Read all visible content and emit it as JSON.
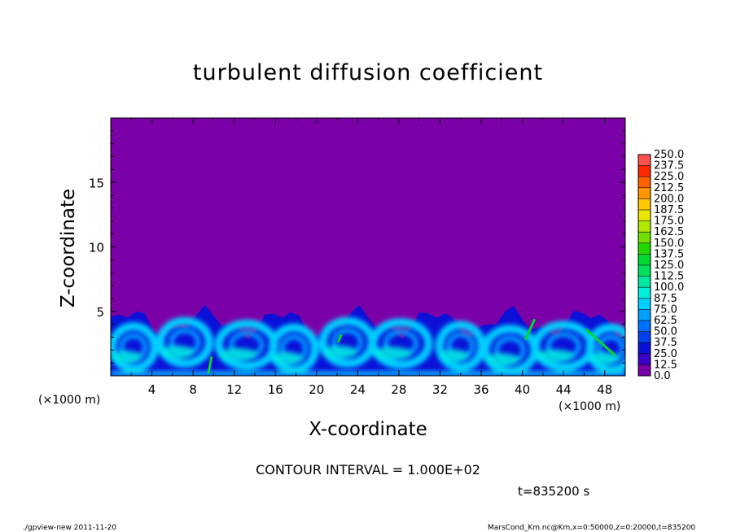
{
  "chart_data": {
    "type": "heatmap",
    "title": "turbulent diffusion coefficient",
    "xlabel": "X-coordinate",
    "ylabel": "Z-coordinate",
    "x_unit_left": "(×1000 m)",
    "x_unit_right": "(×1000 m)",
    "xlim": [
      0,
      50
    ],
    "ylim": [
      0,
      20
    ],
    "x_ticks": [
      4,
      8,
      12,
      16,
      20,
      24,
      28,
      32,
      36,
      40,
      44,
      48
    ],
    "x_tick_labels": [
      "4",
      "8",
      "12",
      "16",
      "20",
      "24",
      "28",
      "32",
      "36",
      "40",
      "44",
      "48"
    ],
    "y_ticks": [
      5,
      10,
      15
    ],
    "y_tick_labels": [
      "5",
      "10",
      "15"
    ],
    "colorbar": {
      "levels": [
        0.0,
        12.5,
        25.0,
        37.5,
        50.0,
        62.5,
        75.0,
        87.5,
        100.0,
        112.5,
        125.0,
        137.5,
        150.0,
        162.5,
        175.0,
        187.5,
        200.0,
        212.5,
        225.0,
        237.5,
        250.0
      ],
      "labels": [
        "0.0",
        "12.5",
        "25.0",
        "37.5",
        "50.0",
        "62.5",
        "75.0",
        "87.5",
        "100.0",
        "112.5",
        "125.0",
        "137.5",
        "150.0",
        "162.5",
        "175.0",
        "187.5",
        "200.0",
        "212.5",
        "225.0",
        "237.5",
        "250.0"
      ],
      "colors": [
        "#7a00a8",
        "#3a00c8",
        "#0a10d8",
        "#0040f0",
        "#0070ff",
        "#00a0ff",
        "#00d0ff",
        "#00f0e0",
        "#00e8a0",
        "#00e060",
        "#00d830",
        "#20d800",
        "#70e000",
        "#b0e800",
        "#e8e800",
        "#ffc800",
        "#ff9600",
        "#ff6000",
        "#ff2800",
        "#ff5050",
        "#ff9898"
      ]
    },
    "background_value_color": "#7a00a8",
    "turbulent_layer_top_approx": 5.5,
    "contour_level": 100.0
  },
  "labels": {
    "contour_interval": "CONTOUR INTERVAL = 1.000E+02",
    "time": "t=835200  s",
    "footer_left": "./gpview-new   2011-11-20",
    "footer_right": "MarsCond_Km.nc@Km,x=0:50000,z=0:20000,t=835200"
  }
}
